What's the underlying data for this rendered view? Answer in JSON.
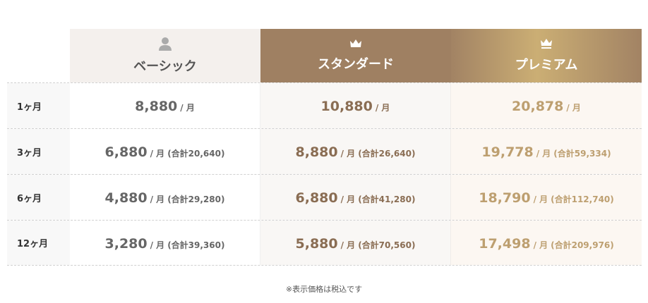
{
  "plans": [
    {
      "name": "ベーシック",
      "icon": "user-icon"
    },
    {
      "name": "スタンダード",
      "icon": "crown-icon"
    },
    {
      "name": "プレミアム",
      "icon": "crown-icon"
    }
  ],
  "rows": [
    {
      "label": "1ヶ月",
      "prices": [
        {
          "price": "8,880",
          "unit": "/ 月",
          "total": ""
        },
        {
          "price": "10,880",
          "unit": "/ 月",
          "total": ""
        },
        {
          "price": "20,878",
          "unit": "/ 月",
          "total": ""
        }
      ]
    },
    {
      "label": "3ヶ月",
      "prices": [
        {
          "price": "6,880",
          "unit": "/ 月",
          "total": "(合計20,640)"
        },
        {
          "price": "8,880",
          "unit": "/ 月",
          "total": "(合計26,640)"
        },
        {
          "price": "19,778",
          "unit": "/ 月",
          "total": "(合計59,334)"
        }
      ]
    },
    {
      "label": "6ヶ月",
      "prices": [
        {
          "price": "4,880",
          "unit": "/ 月",
          "total": "(合計29,280)"
        },
        {
          "price": "6,880",
          "unit": "/ 月",
          "total": "(合計41,280)"
        },
        {
          "price": "18,790",
          "unit": "/ 月",
          "total": "(合計112,740)"
        }
      ]
    },
    {
      "label": "12ヶ月",
      "prices": [
        {
          "price": "3,280",
          "unit": "/ 月",
          "total": "(合計39,360)"
        },
        {
          "price": "5,880",
          "unit": "/ 月",
          "total": "(合計70,560)"
        },
        {
          "price": "17,498",
          "unit": "/ 月",
          "total": "(合計209,976)"
        }
      ]
    }
  ],
  "note": "※表示価格は税込です",
  "colors": {
    "standard": "#9f8062",
    "premium_accent": "#cbae74",
    "basic_text": "#666666"
  }
}
